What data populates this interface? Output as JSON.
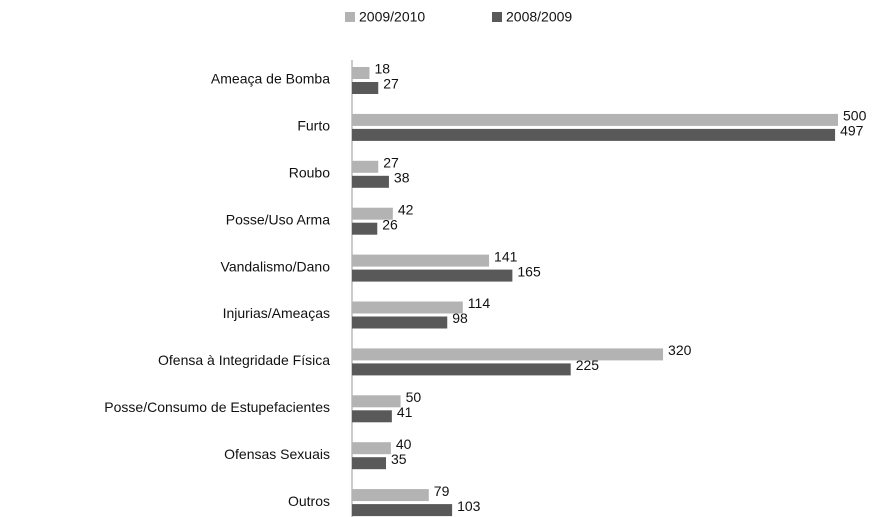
{
  "chart_data": {
    "type": "hbar",
    "categories": [
      "Ameaça de Bomba",
      "Furto",
      "Roubo",
      "Posse/Uso Arma",
      "Vandalismo/Dano",
      "Injurias/Ameaças",
      "Ofensa à Integridade Física",
      "Posse/Consumo de Estupefacientes",
      "Ofensas Sexuais",
      "Outros"
    ],
    "series": [
      {
        "name": "2009/2010",
        "color": "#b3b3b3",
        "values": [
          18,
          500,
          27,
          42,
          141,
          114,
          320,
          50,
          40,
          79
        ]
      },
      {
        "name": "2008/2009",
        "color": "#595959",
        "values": [
          27,
          497,
          38,
          26,
          165,
          98,
          225,
          41,
          35,
          103
        ]
      }
    ],
    "xlim": [
      0,
      500
    ],
    "legend": "top"
  }
}
